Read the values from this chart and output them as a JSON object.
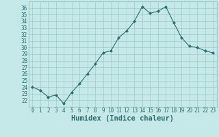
{
  "xlabel": "Humidex (Indice chaleur)",
  "x": [
    0,
    1,
    2,
    3,
    4,
    5,
    6,
    7,
    8,
    9,
    10,
    11,
    12,
    13,
    14,
    15,
    16,
    17,
    18,
    19,
    20,
    21,
    22,
    23
  ],
  "y": [
    24.0,
    23.5,
    22.5,
    22.8,
    21.5,
    23.2,
    24.5,
    26.0,
    27.5,
    29.2,
    29.5,
    31.5,
    32.5,
    34.0,
    36.2,
    35.2,
    35.5,
    36.2,
    33.8,
    31.5,
    30.2,
    30.0,
    29.5,
    29.2
  ],
  "line_color": "#2d6e6e",
  "marker": "D",
  "marker_size": 2,
  "bg_color": "#c5e8e8",
  "grid_color": "#a0c8c8",
  "ylim": [
    21.0,
    37.0
  ],
  "yticks": [
    22,
    23,
    24,
    25,
    26,
    27,
    28,
    29,
    30,
    31,
    32,
    33,
    34,
    35,
    36
  ],
  "xlim": [
    -0.5,
    23.5
  ],
  "tick_fontsize": 5.5,
  "xlabel_fontsize": 7.5,
  "label_color": "#2d6e6e"
}
